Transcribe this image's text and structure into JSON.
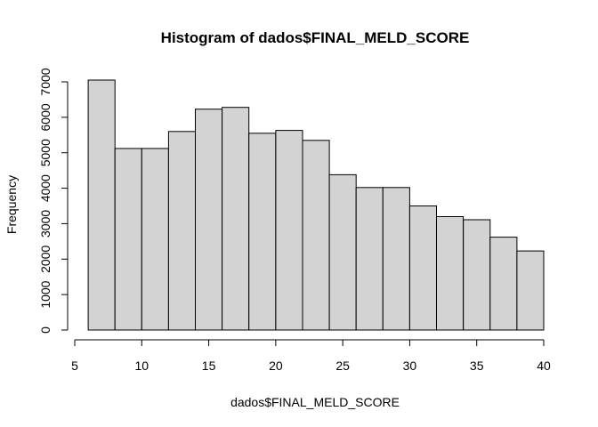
{
  "chart_data": {
    "type": "bar",
    "title": "Histogram of dados$FINAL_MELD_SCORE",
    "xlabel": "dados$FINAL_MELD_SCORE",
    "ylabel": "Frequency",
    "bins": [
      {
        "start": 6,
        "end": 8,
        "count": 7050
      },
      {
        "start": 8,
        "end": 10,
        "count": 5120
      },
      {
        "start": 10,
        "end": 12,
        "count": 5120
      },
      {
        "start": 12,
        "end": 14,
        "count": 5600
      },
      {
        "start": 14,
        "end": 16,
        "count": 6230
      },
      {
        "start": 16,
        "end": 18,
        "count": 6280
      },
      {
        "start": 18,
        "end": 20,
        "count": 5550
      },
      {
        "start": 20,
        "end": 22,
        "count": 5630
      },
      {
        "start": 22,
        "end": 24,
        "count": 5350
      },
      {
        "start": 24,
        "end": 26,
        "count": 4380
      },
      {
        "start": 26,
        "end": 28,
        "count": 4020
      },
      {
        "start": 28,
        "end": 30,
        "count": 4020
      },
      {
        "start": 30,
        "end": 32,
        "count": 3500
      },
      {
        "start": 32,
        "end": 34,
        "count": 3200
      },
      {
        "start": 34,
        "end": 36,
        "count": 3110
      },
      {
        "start": 36,
        "end": 38,
        "count": 2620
      },
      {
        "start": 38,
        "end": 40,
        "count": 2230
      }
    ],
    "xlim": [
      5,
      40
    ],
    "ylim": [
      0,
      7050
    ],
    "x_ticks": [
      5,
      10,
      15,
      20,
      25,
      30,
      35,
      40
    ],
    "y_ticks": [
      0,
      1000,
      2000,
      3000,
      4000,
      5000,
      6000,
      7000
    ],
    "y_tick_labels": [
      "0",
      "",
      "2000",
      "",
      "4000",
      "",
      "6000",
      ""
    ],
    "y_tick_labels_full": [
      "0",
      "1000",
      "3000",
      "5000",
      "7000"
    ]
  }
}
